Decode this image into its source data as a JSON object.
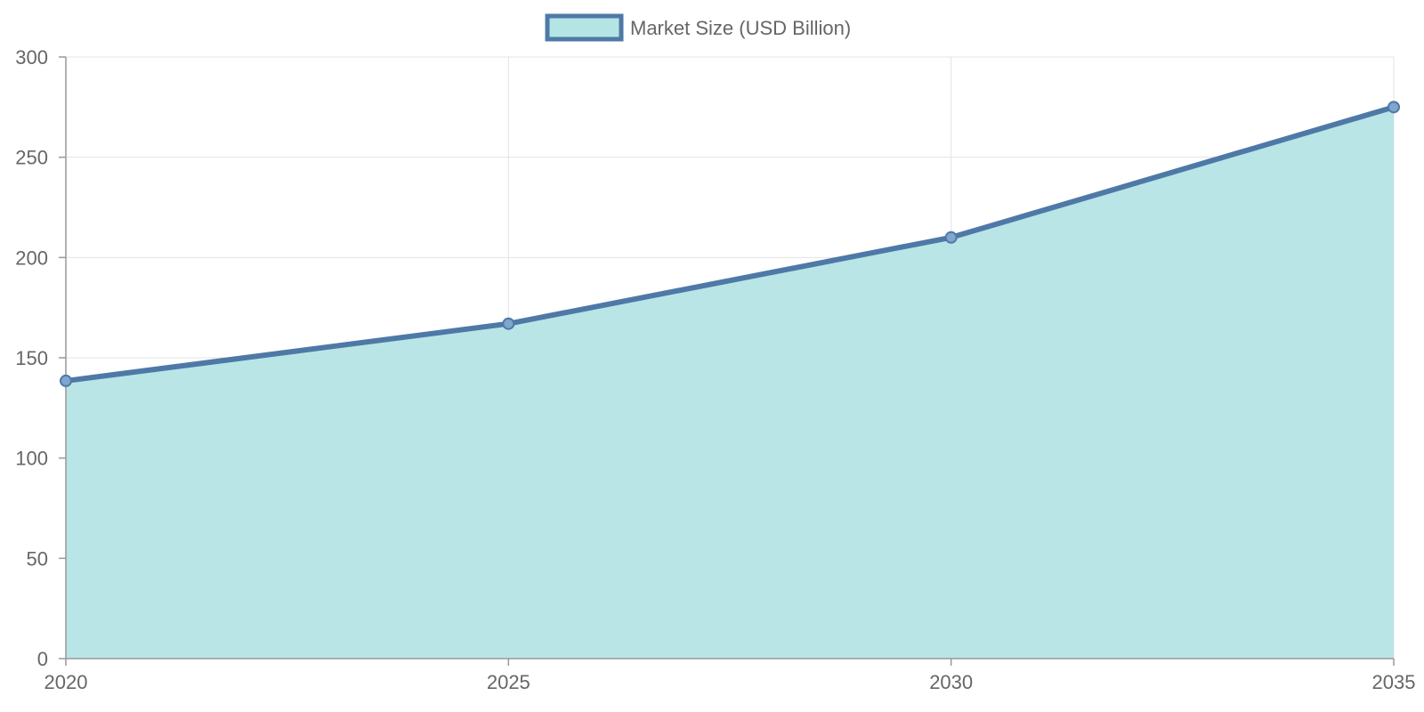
{
  "chart_data": {
    "type": "area",
    "categories": [
      "2020",
      "2025",
      "2030",
      "2035"
    ],
    "series": [
      {
        "name": "Market Size (USD Billion)",
        "values": [
          138.5,
          167,
          210,
          275
        ],
        "line_color": "#4e79a7",
        "fill_color": "#b5e4e5"
      }
    ],
    "title": "",
    "xlabel": "",
    "ylabel": "",
    "ylim": [
      0,
      300
    ],
    "yticks": [
      0,
      50,
      100,
      150,
      200,
      250,
      300
    ],
    "grid": true,
    "legend_position": "top-center"
  }
}
